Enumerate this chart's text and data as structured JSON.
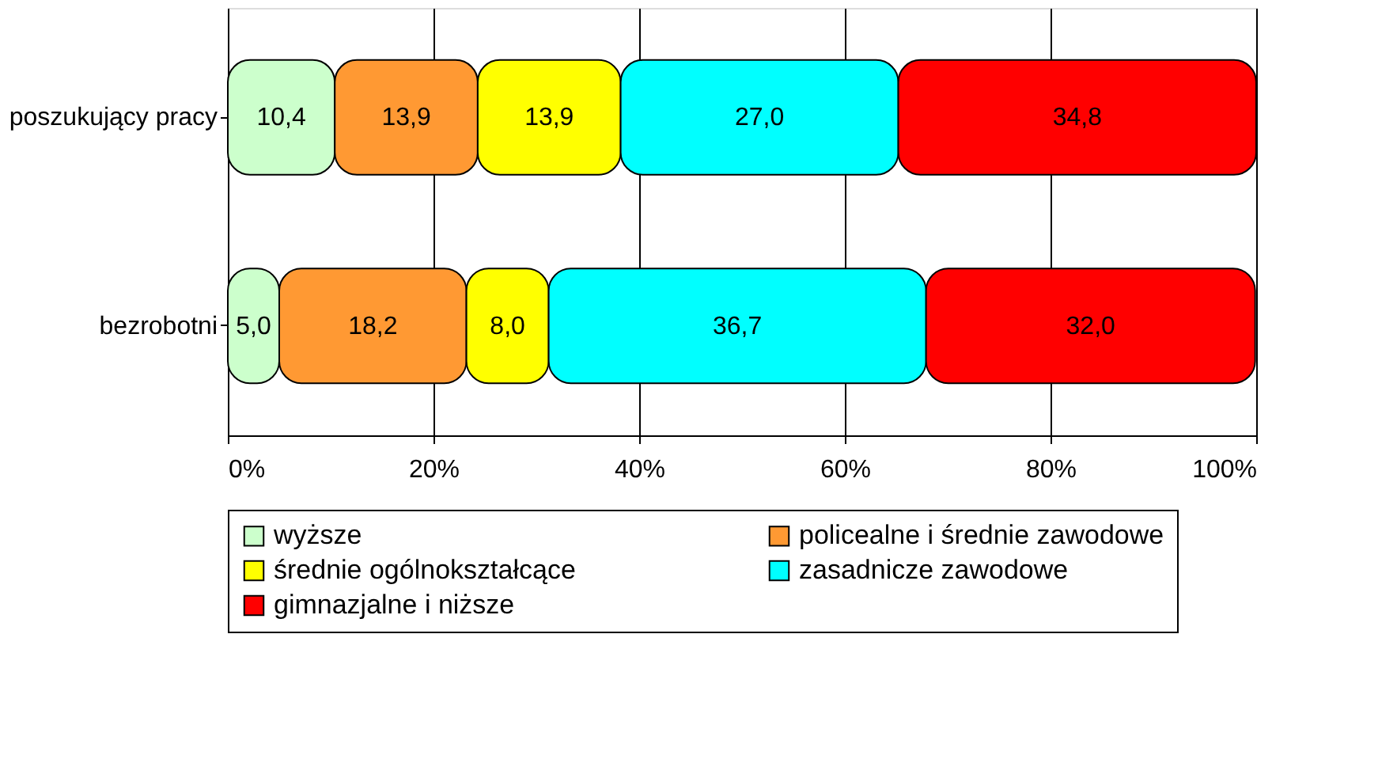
{
  "chart_data": {
    "type": "bar",
    "orientation": "horizontal",
    "stacked": true,
    "categories": [
      "poszukujący pracy",
      "bezrobotni"
    ],
    "series": [
      {
        "name": "wyższe",
        "color": "#ccffcc",
        "values": [
          10.4,
          5.0
        ],
        "value_labels": [
          "10,4",
          "5,0"
        ]
      },
      {
        "name": "policealne i średnie zawodowe",
        "color": "#ff9933",
        "values": [
          13.9,
          18.2
        ],
        "value_labels": [
          "13,9",
          "18,2"
        ]
      },
      {
        "name": "średnie ogólnokształcące",
        "color": "#ffff00",
        "values": [
          13.9,
          8.0
        ],
        "value_labels": [
          "13,9",
          "8,0"
        ]
      },
      {
        "name": "zasadnicze zawodowe",
        "color": "#00ffff",
        "values": [
          27.0,
          36.7
        ],
        "value_labels": [
          "27,0",
          "36,7"
        ]
      },
      {
        "name": "gimnazjalne i niższe",
        "color": "#ff0000",
        "values": [
          34.8,
          32.0
        ],
        "value_labels": [
          "34,8",
          "32,0"
        ]
      }
    ],
    "xlim": [
      0,
      100
    ],
    "xticks": [
      {
        "value": 0,
        "label": "0%"
      },
      {
        "value": 20,
        "label": "20%"
      },
      {
        "value": 40,
        "label": "40%"
      },
      {
        "value": 60,
        "label": "60%"
      },
      {
        "value": 80,
        "label": "80%"
      },
      {
        "value": 100,
        "label": "100%"
      }
    ],
    "grid": "x",
    "legend": "bottom"
  }
}
